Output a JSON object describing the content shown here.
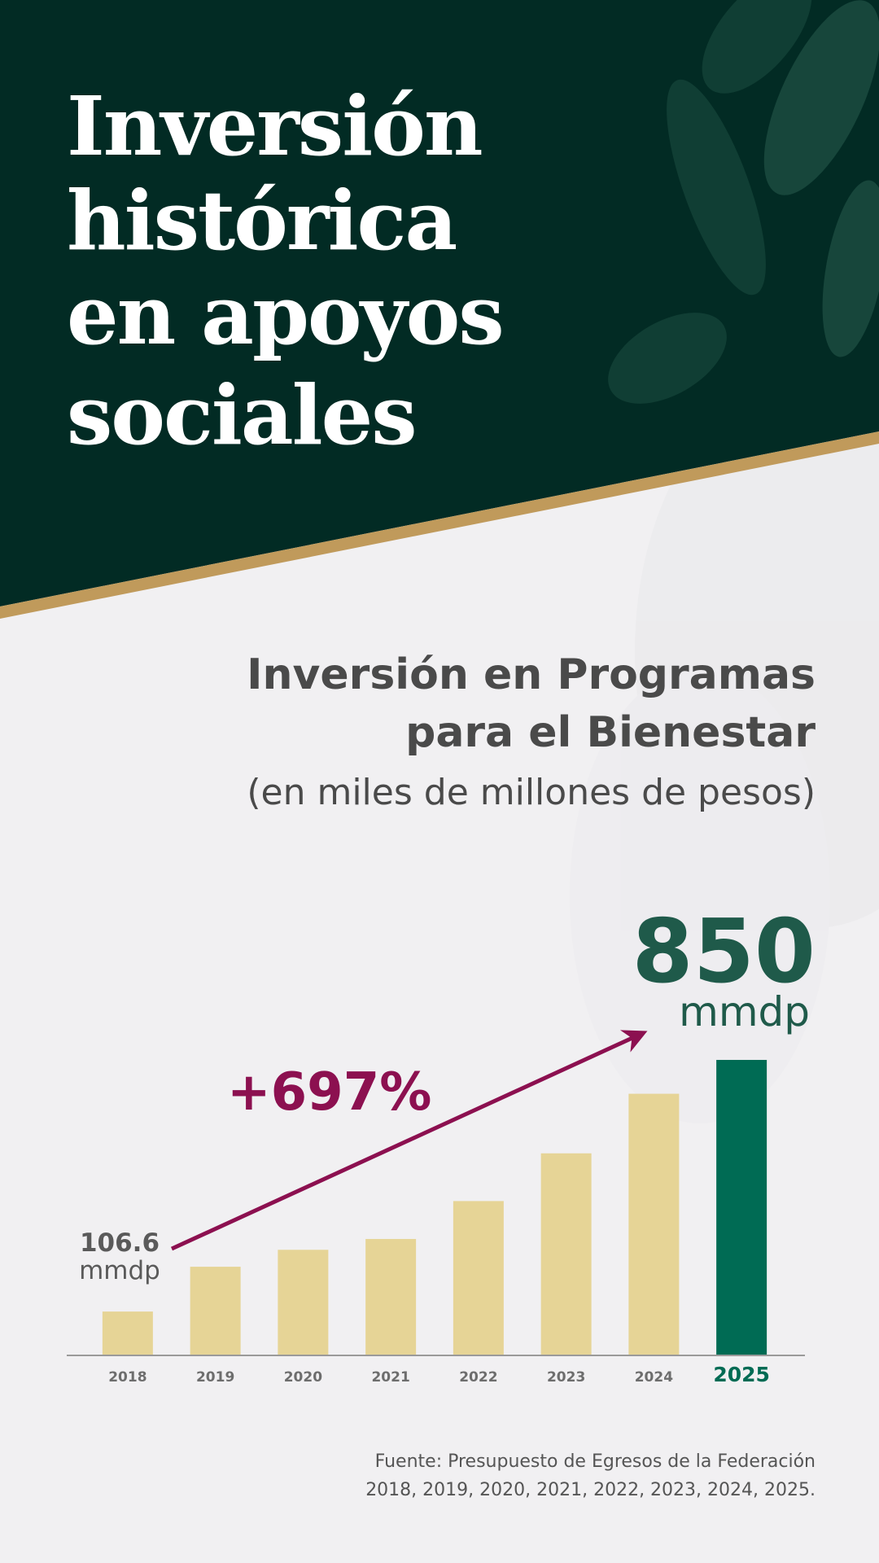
{
  "title_lines": [
    "Inversión",
    "histórica",
    "en apoyos",
    "sociales"
  ],
  "chart_data": {
    "type": "bar",
    "title_lines": [
      "Inversión en Programas",
      "para el Bienestar"
    ],
    "subtitle": "(en miles de millones de pesos)",
    "unit": "mmdp",
    "annotation": "+697%",
    "categories": [
      "2018",
      "2019",
      "2020",
      "2021",
      "2022",
      "2023",
      "2024",
      "2025"
    ],
    "values": [
      106.6,
      239,
      289,
      321,
      433,
      574,
      750,
      850
    ],
    "color": "#e6d496",
    "colors": [
      "#e6d496",
      "#e6d496",
      "#e6d496",
      "#e6d496",
      "#e6d496",
      "#e6d496",
      "#e6d496",
      "#006b54"
    ],
    "axis_color": "#9a9a9a",
    "ylim": [
      -23,
      850
    ]
  },
  "source_lines": [
    "Fuente: Presupuesto de Egresos de la Federación",
    "2018, 2019, 2020, 2021, 2022, 2023, 2024, 2025."
  ]
}
